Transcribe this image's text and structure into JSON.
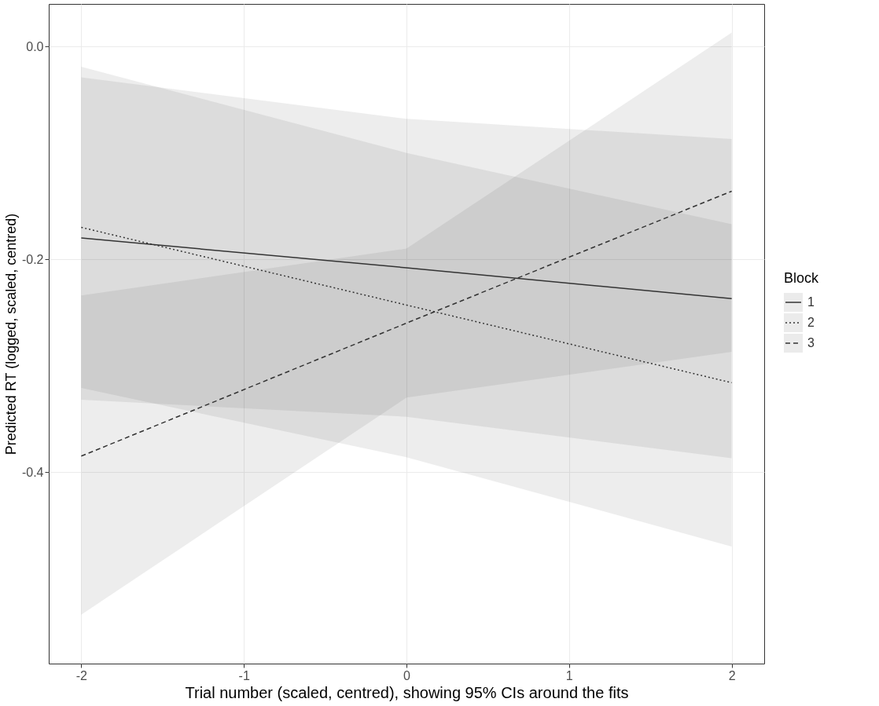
{
  "chart_data": {
    "type": "line",
    "xlabel": "Trial number (scaled, centred), showing 95% CIs around the fits",
    "ylabel": "Predicted RT (logged, scaled, centred)",
    "legend_title": "Block",
    "legend": "right",
    "grid": true,
    "xlim": [
      -2.2,
      2.2
    ],
    "xticks": [
      -2,
      -1,
      0,
      1,
      2
    ],
    "ylim": [
      -0.58,
      0.04
    ],
    "yticks": [
      {
        "value": 0,
        "label": "0.0"
      },
      -0.2,
      -0.4
    ],
    "x": [
      -2,
      0,
      2
    ],
    "series": [
      {
        "name": "1",
        "color": "#333333",
        "line_style": "solid",
        "values": [
          -0.18,
          -0.208,
          -0.237
        ],
        "lower": [
          -0.332,
          -0.348,
          -0.387
        ],
        "upper": [
          -0.029,
          -0.068,
          -0.087
        ]
      },
      {
        "name": "2",
        "color": "#333333",
        "line_style": "dotted",
        "values": [
          -0.17,
          -0.243,
          -0.316
        ],
        "lower": [
          -0.321,
          -0.386,
          -0.47
        ],
        "upper": [
          -0.019,
          -0.1,
          -0.167
        ]
      },
      {
        "name": "3",
        "color": "#333333",
        "line_style": "dashed",
        "values": [
          -0.385,
          -0.26,
          -0.136
        ],
        "lower": [
          -0.534,
          -0.33,
          -0.287
        ],
        "upper": [
          -0.234,
          -0.19,
          0.013
        ]
      }
    ]
  }
}
